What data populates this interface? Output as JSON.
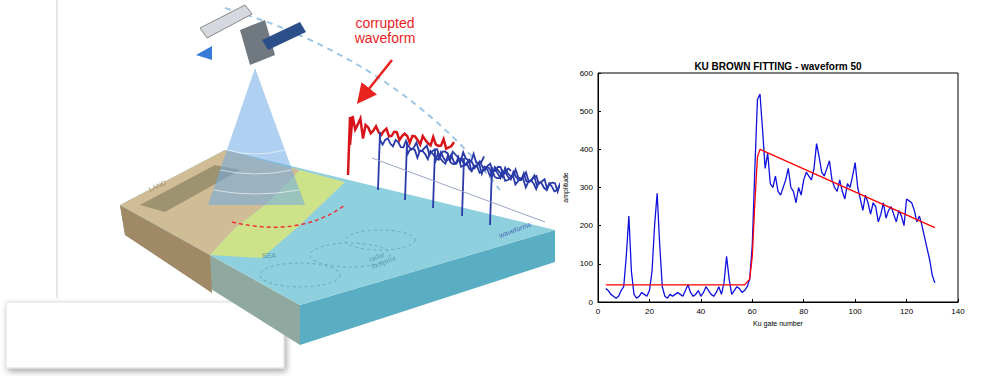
{
  "illustration": {
    "callout": [
      "corrupted",
      "waveform"
    ],
    "land_label": "LAND",
    "sea_label": "SEA",
    "footprint_label": [
      "radar",
      "footprint"
    ],
    "waveforms_label": "waveforms"
  },
  "chart_data": {
    "type": "line",
    "title": "KU BROWN FITTING - waveform 50",
    "x_label": "Ku gate number",
    "y_label": "amplitude",
    "xlim": [
      0,
      140
    ],
    "xticks": [
      0,
      20,
      40,
      60,
      80,
      100,
      120,
      140
    ],
    "ylim": [
      0,
      600
    ],
    "yticks": [
      0,
      100,
      200,
      300,
      400,
      500,
      600
    ],
    "grid": false,
    "series": [
      {
        "color": "#1010e0",
        "x": [
          3,
          4,
          5,
          6,
          7,
          8,
          9,
          10,
          11,
          12,
          13,
          14,
          15,
          16,
          17,
          18,
          19,
          20,
          21,
          22,
          23,
          24,
          25,
          26,
          27,
          28,
          29,
          30,
          31,
          32,
          33,
          34,
          35,
          36,
          37,
          38,
          39,
          40,
          41,
          42,
          43,
          44,
          45,
          46,
          47,
          48,
          49,
          50,
          51,
          52,
          53,
          54,
          55,
          56,
          57,
          58,
          59,
          60,
          61,
          62,
          63,
          64,
          65,
          66,
          67,
          68,
          69,
          70,
          71,
          72,
          73,
          74,
          75,
          76,
          77,
          78,
          79,
          80,
          81,
          82,
          83,
          84,
          85,
          86,
          87,
          88,
          89,
          90,
          91,
          92,
          93,
          94,
          95,
          96,
          97,
          98,
          99,
          100,
          101,
          102,
          103,
          104,
          105,
          106,
          107,
          108,
          109,
          110,
          111,
          112,
          113,
          114,
          115,
          116,
          117,
          118,
          119,
          120,
          121,
          122,
          123,
          124,
          125,
          126,
          127,
          128,
          129,
          130,
          131
        ],
        "values": [
          35,
          30,
          20,
          15,
          10,
          15,
          30,
          40,
          120,
          225,
          80,
          20,
          10,
          15,
          25,
          20,
          15,
          30,
          80,
          200,
          285,
          150,
          40,
          15,
          10,
          20,
          15,
          20,
          25,
          20,
          15,
          30,
          45,
          25,
          15,
          20,
          30,
          15,
          25,
          40,
          30,
          20,
          15,
          25,
          40,
          20,
          50,
          120,
          60,
          20,
          30,
          40,
          35,
          25,
          30,
          40,
          60,
          150,
          350,
          530,
          545,
          450,
          350,
          390,
          310,
          300,
          330,
          290,
          280,
          300,
          320,
          350,
          300,
          290,
          260,
          300,
          280,
          320,
          340,
          330,
          320,
          350,
          415,
          380,
          340,
          330,
          350,
          370,
          320,
          300,
          290,
          320,
          290,
          270,
          310,
          300,
          330,
          365,
          300,
          270,
          240,
          280,
          260,
          230,
          260,
          250,
          210,
          230,
          260,
          220,
          240,
          250,
          230,
          210,
          240,
          225,
          200,
          270,
          265,
          260,
          240,
          210,
          225,
          200,
          170,
          140,
          110,
          70,
          50
        ]
      },
      {
        "color": "#ff0000",
        "x": [
          3,
          57,
          59,
          60,
          61,
          62,
          63,
          131
        ],
        "values": [
          45,
          45,
          60,
          120,
          260,
          380,
          400,
          195
        ]
      }
    ]
  }
}
